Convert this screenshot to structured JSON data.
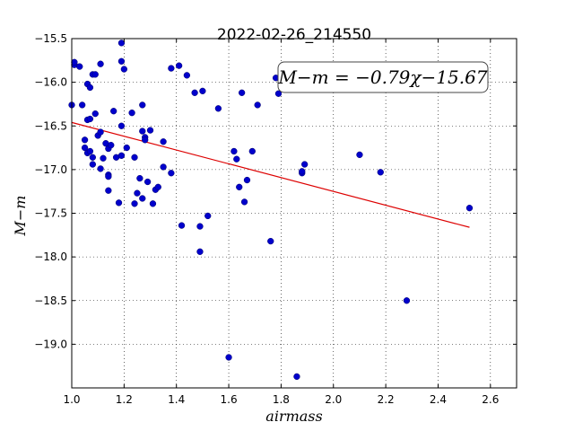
{
  "chart_data": {
    "type": "scatter",
    "title": "2022-02-26_214550",
    "xlabel": "airmass",
    "ylabel": "M−m",
    "xlim": [
      1.0,
      2.7
    ],
    "ylim": [
      -19.5,
      -15.5
    ],
    "y_inverted": true,
    "grid": true,
    "grid_style": "dotted",
    "xticks": [
      1.0,
      1.2,
      1.4,
      1.6,
      1.8,
      2.0,
      2.2,
      2.4,
      2.6
    ],
    "xtick_labels": [
      "1.0",
      "1.2",
      "1.4",
      "1.6",
      "1.8",
      "2.0",
      "2.2",
      "2.4",
      "2.6"
    ],
    "yticks": [
      -15.5,
      -16.0,
      -16.5,
      -17.0,
      -17.5,
      -18.0,
      -18.5,
      -19.0
    ],
    "ytick_labels": [
      "−15.5",
      "−16.0",
      "−16.5",
      "−17.0",
      "−17.5",
      "−18.0",
      "−18.5",
      "−19.0"
    ],
    "annotation": "M−m = −0.79χ−15.67",
    "colors": {
      "points": "#0000cc",
      "fit_line": "#dd0000"
    },
    "fit": {
      "slope": -0.79,
      "intercept": -15.67,
      "x_range": [
        1.0,
        2.52
      ]
    },
    "points": [
      [
        1.0,
        -16.26
      ],
      [
        1.01,
        -15.8
      ],
      [
        1.01,
        -15.77
      ],
      [
        1.03,
        -15.82
      ],
      [
        1.04,
        -16.26
      ],
      [
        1.05,
        -16.66
      ],
      [
        1.05,
        -16.75
      ],
      [
        1.06,
        -16.02
      ],
      [
        1.06,
        -16.43
      ],
      [
        1.06,
        -16.81
      ],
      [
        1.07,
        -16.06
      ],
      [
        1.07,
        -16.42
      ],
      [
        1.07,
        -16.79
      ],
      [
        1.08,
        -15.91
      ],
      [
        1.08,
        -16.86
      ],
      [
        1.08,
        -16.94
      ],
      [
        1.09,
        -15.91
      ],
      [
        1.09,
        -16.36
      ],
      [
        1.1,
        -16.61
      ],
      [
        1.11,
        -15.79
      ],
      [
        1.11,
        -16.57
      ],
      [
        1.11,
        -16.99
      ],
      [
        1.12,
        -16.87
      ],
      [
        1.13,
        -16.7
      ],
      [
        1.14,
        -16.76
      ],
      [
        1.14,
        -17.06
      ],
      [
        1.14,
        -17.08
      ],
      [
        1.14,
        -17.24
      ],
      [
        1.15,
        -16.72
      ],
      [
        1.16,
        -16.33
      ],
      [
        1.17,
        -16.86
      ],
      [
        1.18,
        -17.38
      ],
      [
        1.19,
        -15.55
      ],
      [
        1.19,
        -15.76
      ],
      [
        1.19,
        -16.5
      ],
      [
        1.19,
        -16.84
      ],
      [
        1.2,
        -15.85
      ],
      [
        1.21,
        -16.75
      ],
      [
        1.23,
        -16.35
      ],
      [
        1.24,
        -16.86
      ],
      [
        1.24,
        -17.39
      ],
      [
        1.25,
        -17.27
      ],
      [
        1.26,
        -17.1
      ],
      [
        1.27,
        -16.26
      ],
      [
        1.27,
        -16.56
      ],
      [
        1.27,
        -17.33
      ],
      [
        1.28,
        -16.63
      ],
      [
        1.28,
        -16.66
      ],
      [
        1.29,
        -17.14
      ],
      [
        1.3,
        -16.55
      ],
      [
        1.31,
        -17.39
      ],
      [
        1.32,
        -17.23
      ],
      [
        1.33,
        -17.2
      ],
      [
        1.35,
        -16.68
      ],
      [
        1.35,
        -16.97
      ],
      [
        1.38,
        -15.84
      ],
      [
        1.38,
        -17.04
      ],
      [
        1.41,
        -15.81
      ],
      [
        1.42,
        -17.64
      ],
      [
        1.44,
        -15.92
      ],
      [
        1.47,
        -16.12
      ],
      [
        1.49,
        -17.65
      ],
      [
        1.49,
        -17.94
      ],
      [
        1.5,
        -16.1
      ],
      [
        1.52,
        -17.53
      ],
      [
        1.56,
        -16.3
      ],
      [
        1.6,
        -19.15
      ],
      [
        1.62,
        -16.79
      ],
      [
        1.63,
        -16.88
      ],
      [
        1.64,
        -17.2
      ],
      [
        1.65,
        -16.12
      ],
      [
        1.66,
        -17.37
      ],
      [
        1.67,
        -17.12
      ],
      [
        1.69,
        -16.79
      ],
      [
        1.71,
        -16.26
      ],
      [
        1.76,
        -17.82
      ],
      [
        1.78,
        -15.95
      ],
      [
        1.79,
        -16.13
      ],
      [
        1.86,
        -19.37
      ],
      [
        1.88,
        -17.04
      ],
      [
        1.88,
        -17.02
      ],
      [
        1.89,
        -16.94
      ],
      [
        2.1,
        -16.83
      ],
      [
        2.18,
        -17.03
      ],
      [
        2.28,
        -18.5
      ],
      [
        2.52,
        -17.44
      ]
    ]
  }
}
